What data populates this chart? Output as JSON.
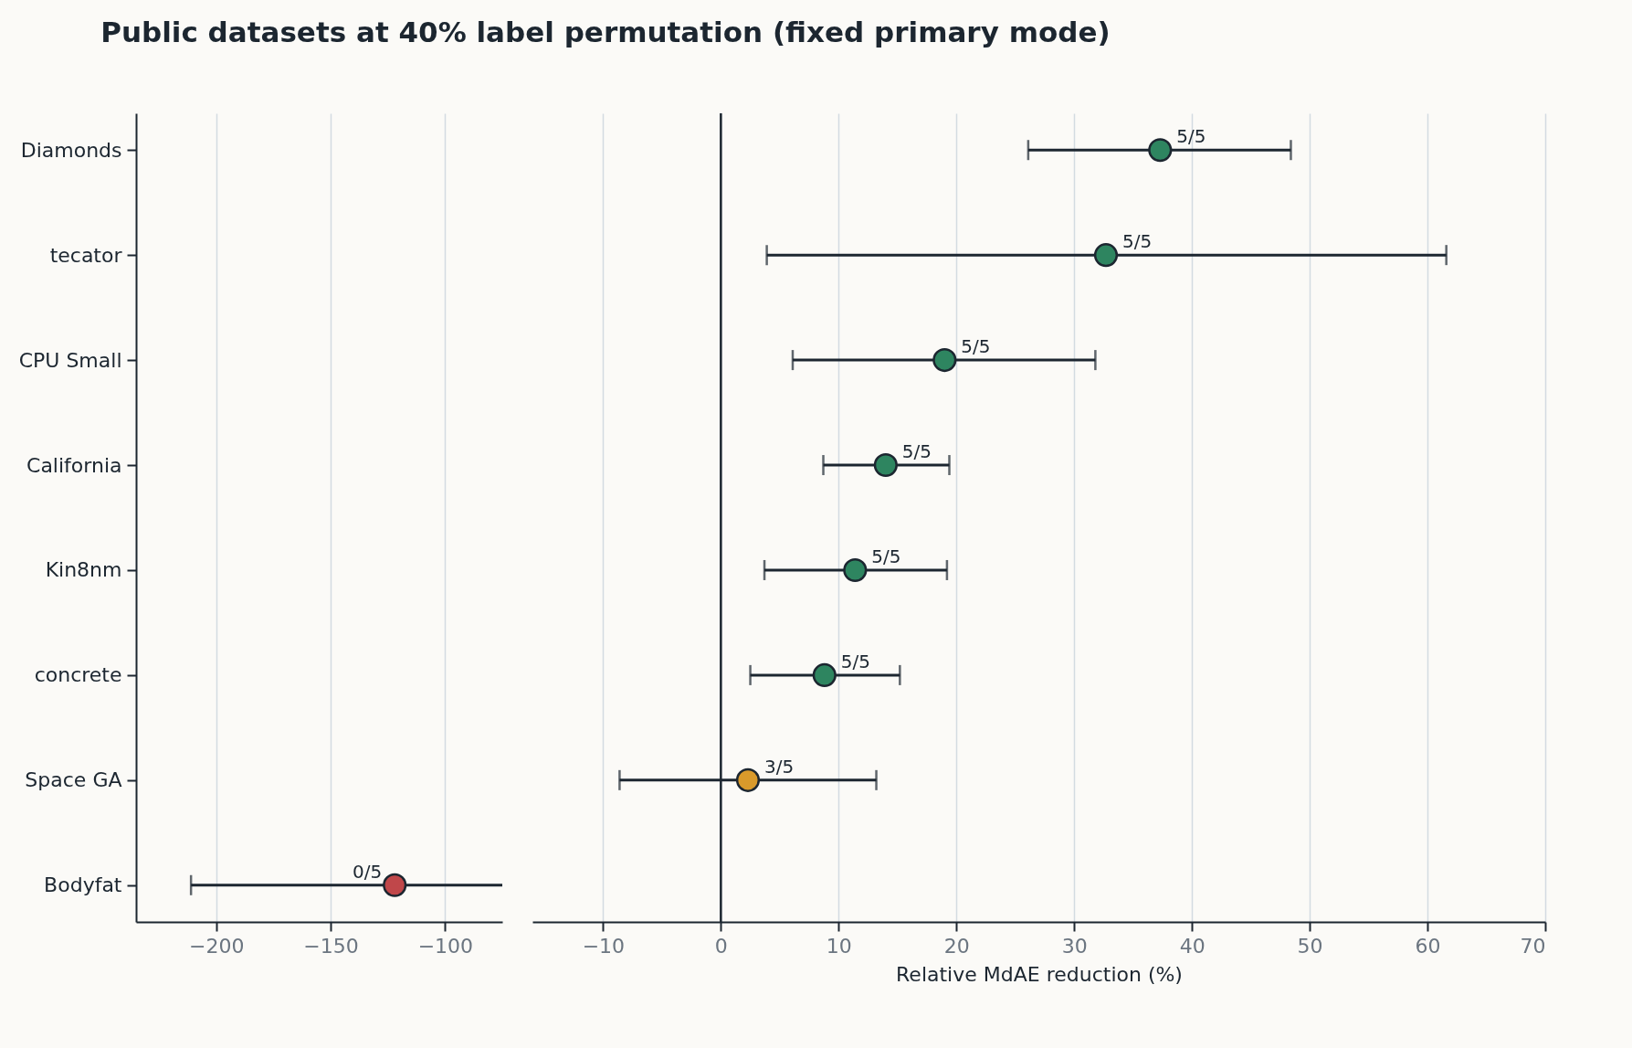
{
  "chart_data": [
    {
      "type": "scatter",
      "title": "Public datasets at 40% label permutation (fixed primary mode)",
      "categories": [
        "Diamonds",
        "tecator",
        "CPU Small",
        "California",
        "Kin8nm",
        "concrete",
        "Space GA",
        "Bodyfat"
      ],
      "orientation": "horizontal",
      "values": [
        null,
        null,
        null,
        null,
        null,
        null,
        null,
        -122
      ],
      "colors": [
        null,
        null,
        null,
        null,
        null,
        null,
        null,
        "#c0474a"
      ],
      "errors": [
        null,
        null,
        null,
        null,
        null,
        null,
        null,
        [
          -211,
          -75
        ]
      ],
      "xlim": [
        -235,
        -75
      ],
      "xticks": [
        {
          "value": -200,
          "label": "−200"
        },
        {
          "value": -150,
          "label": "−150"
        },
        {
          "value": -100,
          "label": "−100"
        }
      ],
      "grid": "x",
      "marker": "circle",
      "annotations": [
        {
          "text": "0/5",
          "x": -122,
          "y": "Bodyfat"
        }
      ]
    },
    {
      "type": "scatter",
      "xlabel": "Relative MdAE reduction (%)",
      "categories": [
        "Diamonds",
        "tecator",
        "CPU Small",
        "California",
        "Kin8nm",
        "concrete",
        "Space GA",
        "Bodyfat"
      ],
      "orientation": "horizontal",
      "values": [
        37.3,
        32.7,
        19,
        14,
        11.4,
        8.8,
        2.3,
        null
      ],
      "colors": [
        "#2e8560",
        "#2e8560",
        "#2e8560",
        "#2e8560",
        "#2e8560",
        "#2e8560",
        "#d99a2b",
        null
      ],
      "errors": [
        [
          26.1,
          48.4
        ],
        [
          3.9,
          61.6
        ],
        [
          6.1,
          31.8
        ],
        [
          8.7,
          19.4
        ],
        [
          3.7,
          19.2
        ],
        [
          2.5,
          15.2
        ],
        [
          -8.6,
          13.2
        ],
        null
      ],
      "xlim": [
        -16,
        70
      ],
      "xticks": [
        {
          "value": -10,
          "label": "−10"
        },
        0,
        10,
        20,
        30,
        40,
        50,
        60,
        70
      ],
      "grid": "x",
      "marker": "circle",
      "tick_labels": "x",
      "ref_lines": [
        {
          "axis": "x",
          "value": 0,
          "color": "#1c2630"
        }
      ],
      "annotations": [
        {
          "text": "5/5",
          "x": 37.3,
          "y": "Diamonds"
        },
        {
          "text": "5/5",
          "x": 32.7,
          "y": "tecator"
        },
        {
          "text": "5/5",
          "x": 19,
          "y": "CPU Small"
        },
        {
          "text": "5/5",
          "x": 14,
          "y": "California"
        },
        {
          "text": "5/5",
          "x": 11.4,
          "y": "Kin8nm"
        },
        {
          "text": "5/5",
          "x": 8.8,
          "y": "concrete"
        },
        {
          "text": "3/5",
          "x": 2.3,
          "y": "Space GA"
        }
      ]
    }
  ]
}
